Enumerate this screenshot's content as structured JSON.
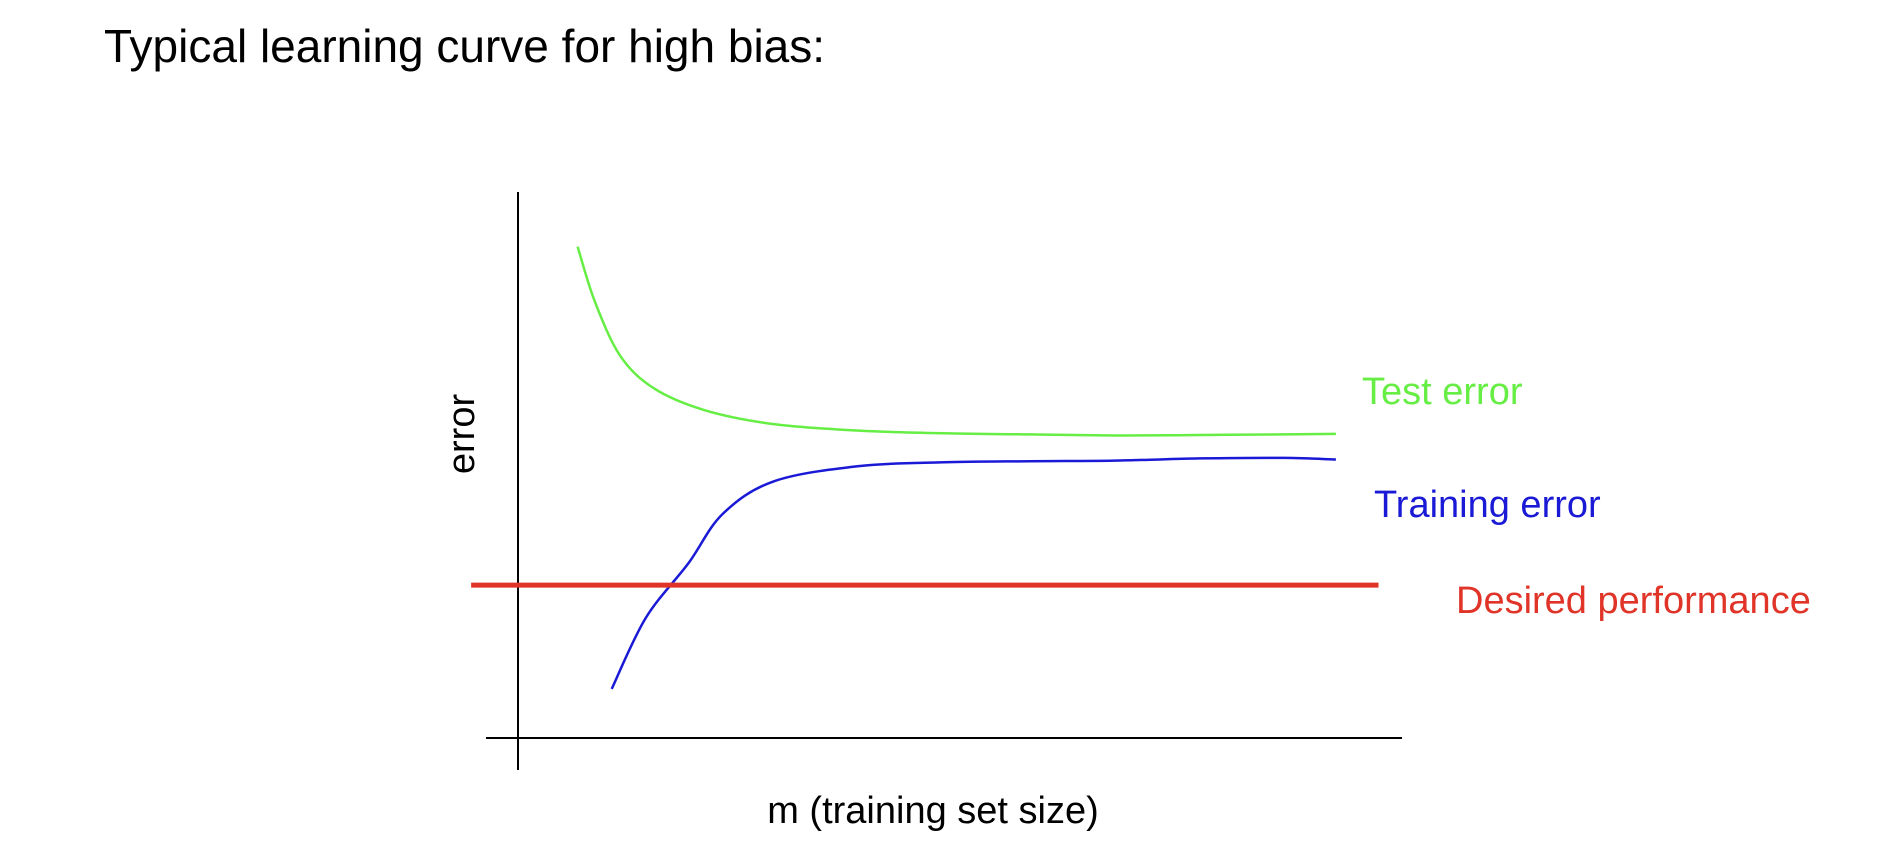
{
  "page": {
    "title": "Typical learning curve for high bias:"
  },
  "chart_data": {
    "type": "line",
    "title": "",
    "xlabel": "m (training set size)",
    "ylabel": "error",
    "xlim": [
      0,
      100
    ],
    "ylim": [
      0,
      100
    ],
    "grid": false,
    "ticks": false,
    "series": [
      {
        "name": "Test error",
        "color": "#66ee44",
        "x": [
          7,
          9,
          12,
          16,
          22,
          30,
          40,
          50,
          60,
          70,
          80,
          90,
          96
        ],
        "y": [
          90,
          80,
          70,
          64,
          60,
          57.5,
          56.3,
          55.8,
          55.6,
          55.4,
          55.5,
          55.6,
          55.7
        ]
      },
      {
        "name": "Training error",
        "color": "#1a1ad6",
        "x": [
          11,
          15,
          20,
          24,
          30,
          40,
          50,
          60,
          70,
          80,
          90,
          96
        ],
        "y": [
          9,
          22,
          32,
          41,
          47,
          49.8,
          50.5,
          50.7,
          50.8,
          51.2,
          51.3,
          51
        ]
      },
      {
        "name": "Desired performance",
        "color": "#e03428",
        "x": [
          -5.5,
          101
        ],
        "y": [
          28,
          28
        ]
      }
    ]
  }
}
